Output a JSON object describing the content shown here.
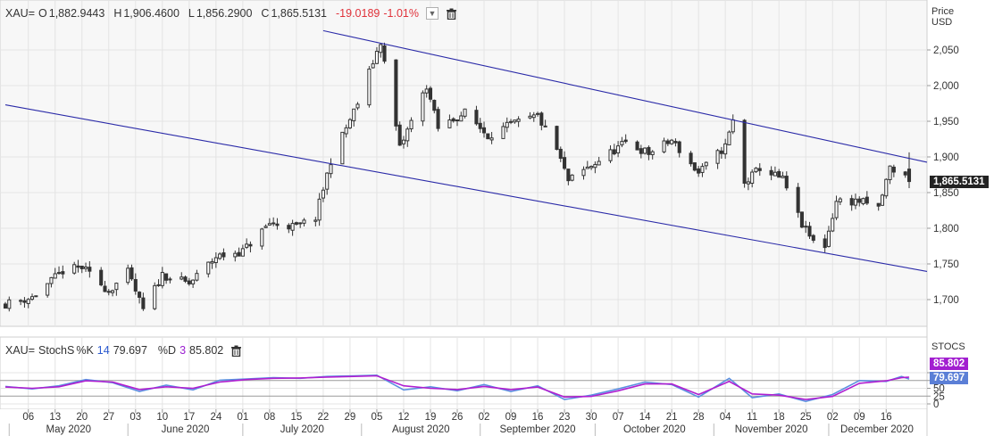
{
  "header": {
    "symbol": "XAU=",
    "open_label": "O",
    "open": "1,882.9443",
    "high_label": "H",
    "high": "1,906.4600",
    "low_label": "L",
    "low": "1,856.2900",
    "close_label": "C",
    "close": "1,865.5131",
    "change": "-19.0189",
    "change_pct": "-1.01%"
  },
  "price_axis": {
    "title_line1": "Price",
    "title_line2": "USD",
    "last_price_tag": "1,865.5131"
  },
  "stoch_header": {
    "symbol": "XAU=",
    "name": "StochS",
    "k_label": "%K",
    "k_period": "14",
    "k_value": "79.697",
    "d_label": "%D",
    "d_period": "3",
    "d_value": "85.802"
  },
  "stoch_axis": {
    "title": "STOCS",
    "k_tag": "79.697",
    "d_tag": "85.802"
  },
  "colors": {
    "up_candle_fill": "#ffffff",
    "down_candle_fill": "#333333",
    "channel_line": "#2a2aa8",
    "k_line": "#5b8fe0",
    "d_line": "#b01fd0",
    "negative": "#e0323a",
    "plot_bg": "#f7f7f7"
  },
  "icons": [
    "chevron-down-icon",
    "trash-icon"
  ],
  "chart_data": [
    {
      "type": "candlestick",
      "title": "XAU=",
      "ylabel": "Price USD",
      "ylim": [
        1660,
        2080
      ],
      "yticks": [
        1700,
        1750,
        1800,
        1850,
        1900,
        1950,
        2000,
        2050
      ],
      "ytick_labels": [
        "1,700",
        "1,750",
        "1,800",
        "1,850",
        "1,900",
        "1,950",
        "2,000",
        "2,050"
      ],
      "x_day_ticks": [
        "06",
        "13",
        "20",
        "27",
        "03",
        "10",
        "17",
        "24",
        "01",
        "08",
        "15",
        "22",
        "29",
        "05",
        "12",
        "19",
        "26",
        "02",
        "09",
        "16",
        "23",
        "30",
        "07",
        "14",
        "21",
        "28",
        "04",
        "11",
        "18",
        "25",
        "02",
        "09",
        "16"
      ],
      "x_month_labels": [
        "May 2020",
        "June 2020",
        "July 2020",
        "August 2020",
        "September 2020",
        "October 2020",
        "November 2020",
        "December 2020"
      ],
      "date_range": [
        "2020-04-30",
        "2020-12-22"
      ],
      "grid": true,
      "anchor_closes": [
        [
          "2020-04-30",
          1694
        ],
        [
          "2020-05-07",
          1703
        ],
        [
          "2020-05-15",
          1740
        ],
        [
          "2020-05-20",
          1745
        ],
        [
          "2020-05-27",
          1712
        ],
        [
          "2020-06-01",
          1738
        ],
        [
          "2020-06-05",
          1685
        ],
        [
          "2020-06-10",
          1735
        ],
        [
          "2020-06-17",
          1722
        ],
        [
          "2020-06-24",
          1760
        ],
        [
          "2020-07-01",
          1768
        ],
        [
          "2020-07-08",
          1807
        ],
        [
          "2020-07-15",
          1802
        ],
        [
          "2020-07-20",
          1815
        ],
        [
          "2020-07-24",
          1895
        ],
        [
          "2020-07-31",
          1975
        ],
        [
          "2020-08-06",
          2062
        ],
        [
          "2020-08-11",
          1912
        ],
        [
          "2020-08-18",
          2000
        ],
        [
          "2020-08-21",
          1940
        ],
        [
          "2020-08-28",
          1962
        ],
        [
          "2020-09-03",
          1930
        ],
        [
          "2020-09-09",
          1945
        ],
        [
          "2020-09-16",
          1957
        ],
        [
          "2020-09-21",
          1910
        ],
        [
          "2020-09-24",
          1866
        ],
        [
          "2020-10-02",
          1895
        ],
        [
          "2020-10-09",
          1920
        ],
        [
          "2020-10-15",
          1905
        ],
        [
          "2020-10-21",
          1923
        ],
        [
          "2020-10-28",
          1877
        ],
        [
          "2020-11-04",
          1915
        ],
        [
          "2020-11-06",
          1950
        ],
        [
          "2020-11-09",
          1862
        ],
        [
          "2020-11-13",
          1885
        ],
        [
          "2020-11-19",
          1868
        ],
        [
          "2020-11-24",
          1805
        ],
        [
          "2020-11-27",
          1781
        ],
        [
          "2020-11-30",
          1776
        ],
        [
          "2020-12-03",
          1838
        ],
        [
          "2020-12-09",
          1838
        ],
        [
          "2020-12-14",
          1828
        ],
        [
          "2020-12-17",
          1885
        ],
        [
          "2020-12-21",
          1872
        ],
        [
          "2020-12-22",
          1866
        ]
      ],
      "last_bar": {
        "open": 1882.9443,
        "high": 1906.46,
        "low": 1856.29,
        "close": 1865.5131
      },
      "channel_lines": [
        {
          "name": "upper",
          "points": [
            [
              "2020-07-22",
              2077
            ],
            [
              "2020-12-22",
              1898
            ]
          ]
        },
        {
          "name": "lower",
          "points": [
            [
              "2020-04-30",
              1973
            ],
            [
              "2020-12-22",
              1744
            ]
          ]
        }
      ],
      "last_price_label": 1865.5131
    },
    {
      "type": "line",
      "title": "StochS",
      "ylim": [
        0,
        100
      ],
      "yticks": [
        0,
        25,
        50,
        75,
        100
      ],
      "grid": true,
      "series": [
        {
          "name": "%K",
          "period": 14,
          "last_value": 79.697,
          "points": [
            [
              "2020-04-30",
              56
            ],
            [
              "2020-05-07",
              48
            ],
            [
              "2020-05-14",
              58
            ],
            [
              "2020-05-21",
              78
            ],
            [
              "2020-05-28",
              68
            ],
            [
              "2020-06-04",
              40
            ],
            [
              "2020-06-11",
              60
            ],
            [
              "2020-06-18",
              45
            ],
            [
              "2020-06-25",
              76
            ],
            [
              "2020-07-02",
              80
            ],
            [
              "2020-07-09",
              84
            ],
            [
              "2020-07-16",
              82
            ],
            [
              "2020-07-23",
              88
            ],
            [
              "2020-07-30",
              90
            ],
            [
              "2020-08-05",
              92
            ],
            [
              "2020-08-12",
              45
            ],
            [
              "2020-08-19",
              55
            ],
            [
              "2020-08-26",
              42
            ],
            [
              "2020-09-02",
              62
            ],
            [
              "2020-09-09",
              40
            ],
            [
              "2020-09-16",
              58
            ],
            [
              "2020-09-23",
              14
            ],
            [
              "2020-09-30",
              28
            ],
            [
              "2020-10-07",
              48
            ],
            [
              "2020-10-14",
              70
            ],
            [
              "2020-10-21",
              62
            ],
            [
              "2020-10-28",
              22
            ],
            [
              "2020-11-05",
              82
            ],
            [
              "2020-11-11",
              20
            ],
            [
              "2020-11-18",
              32
            ],
            [
              "2020-11-25",
              8
            ],
            [
              "2020-12-02",
              30
            ],
            [
              "2020-12-09",
              75
            ],
            [
              "2020-12-16",
              72
            ],
            [
              "2020-12-20",
              88
            ],
            [
              "2020-12-22",
              79.697
            ]
          ]
        },
        {
          "name": "%D",
          "period": 3,
          "last_value": 85.802,
          "points": [
            [
              "2020-04-30",
              54
            ],
            [
              "2020-05-07",
              50
            ],
            [
              "2020-05-14",
              55
            ],
            [
              "2020-05-21",
              74
            ],
            [
              "2020-05-28",
              70
            ],
            [
              "2020-06-04",
              46
            ],
            [
              "2020-06-11",
              55
            ],
            [
              "2020-06-18",
              50
            ],
            [
              "2020-06-25",
              70
            ],
            [
              "2020-07-02",
              78
            ],
            [
              "2020-07-09",
              82
            ],
            [
              "2020-07-16",
              83
            ],
            [
              "2020-07-23",
              86
            ],
            [
              "2020-07-30",
              88
            ],
            [
              "2020-08-05",
              90
            ],
            [
              "2020-08-12",
              58
            ],
            [
              "2020-08-19",
              50
            ],
            [
              "2020-08-26",
              46
            ],
            [
              "2020-09-02",
              56
            ],
            [
              "2020-09-09",
              46
            ],
            [
              "2020-09-16",
              54
            ],
            [
              "2020-09-23",
              22
            ],
            [
              "2020-09-30",
              24
            ],
            [
              "2020-10-07",
              42
            ],
            [
              "2020-10-14",
              64
            ],
            [
              "2020-10-21",
              64
            ],
            [
              "2020-10-28",
              30
            ],
            [
              "2020-11-05",
              72
            ],
            [
              "2020-11-11",
              32
            ],
            [
              "2020-11-18",
              28
            ],
            [
              "2020-11-25",
              14
            ],
            [
              "2020-12-02",
              24
            ],
            [
              "2020-12-09",
              66
            ],
            [
              "2020-12-16",
              74
            ],
            [
              "2020-12-20",
              84
            ],
            [
              "2020-12-22",
              85.802
            ]
          ]
        }
      ]
    }
  ]
}
